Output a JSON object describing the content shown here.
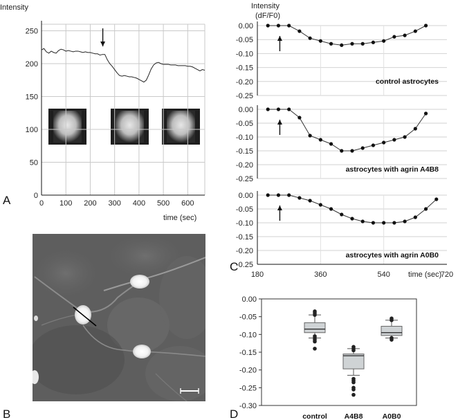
{
  "panel_letters": [
    "A",
    "B",
    "C",
    "D"
  ],
  "chart_data": [
    {
      "id": "A",
      "type": "line",
      "title": "",
      "ylabel": "Intensity",
      "xlabel": "time (sec)",
      "xlim": [
        0,
        670
      ],
      "ylim": [
        0,
        260
      ],
      "xticks": [
        0,
        100,
        200,
        300,
        400,
        500,
        600
      ],
      "yticks": [
        0,
        50,
        100,
        150,
        200,
        250
      ],
      "grid": true,
      "arrow_at_x": 260,
      "series": [
        {
          "x": [
            0,
            10,
            20,
            30,
            40,
            50,
            60,
            70,
            80,
            90,
            100,
            110,
            120,
            130,
            140,
            150,
            160,
            170,
            180,
            190,
            200,
            210,
            220,
            230,
            240,
            250,
            260,
            270,
            280,
            290,
            300,
            310,
            320,
            330,
            340,
            350,
            360,
            370,
            380,
            390,
            400,
            410,
            420,
            430,
            440,
            450,
            460,
            470,
            480,
            490,
            500,
            510,
            520,
            530,
            540,
            550,
            560,
            570,
            580,
            590,
            600,
            610,
            620,
            630,
            640,
            650,
            660,
            670
          ],
          "values": [
            221,
            223,
            218,
            216,
            219,
            217,
            216,
            220,
            222,
            221,
            219,
            220,
            219,
            218,
            219,
            219,
            218,
            217,
            218,
            217,
            217,
            216,
            215,
            215,
            213,
            214,
            214,
            206,
            200,
            196,
            191,
            186,
            182,
            181,
            182,
            181,
            180,
            180,
            179,
            178,
            176,
            174,
            172,
            175,
            183,
            192,
            198,
            201,
            202,
            200,
            199,
            199,
            199,
            198,
            198,
            198,
            197,
            197,
            197,
            197,
            196,
            196,
            195,
            193,
            191,
            189,
            191,
            190
          ]
        }
      ],
      "insets": 3
    },
    {
      "id": "C",
      "type": "line",
      "ylabel": "Intensity\n(dF/F0)",
      "xlabel": "time (sec)",
      "xlim": [
        180,
        720
      ],
      "ylim": [
        -0.25,
        0.0
      ],
      "xticks": [
        180,
        360,
        540,
        720
      ],
      "yticks": [
        0.0,
        -0.05,
        -0.1,
        -0.15,
        -0.2,
        -0.25
      ],
      "ytick_labels": [
        "0.00",
        "-0.05",
        "-0.10",
        "-0.15",
        "-0.20",
        "-0.25"
      ],
      "grid": true,
      "series": [
        {
          "name": "control astrocytes",
          "arrow_at_x": 240,
          "x": [
            210,
            240,
            270,
            300,
            330,
            360,
            390,
            420,
            450,
            480,
            510,
            540,
            570,
            600,
            630,
            660
          ],
          "values": [
            0.0,
            0.0,
            0.0,
            -0.02,
            -0.045,
            -0.055,
            -0.065,
            -0.07,
            -0.065,
            -0.065,
            -0.06,
            -0.055,
            -0.04,
            -0.035,
            -0.02,
            0.0
          ]
        },
        {
          "name": "astrocytes with agrin A4B8",
          "arrow_at_x": 240,
          "x": [
            210,
            240,
            270,
            300,
            330,
            360,
            390,
            420,
            450,
            480,
            510,
            540,
            570,
            600,
            630,
            660
          ],
          "values": [
            0.0,
            0.0,
            0.0,
            -0.03,
            -0.095,
            -0.11,
            -0.125,
            -0.15,
            -0.15,
            -0.14,
            -0.13,
            -0.12,
            -0.11,
            -0.1,
            -0.07,
            -0.015
          ]
        },
        {
          "name": "astrocytes with agrin A0B0",
          "arrow_at_x": 240,
          "x": [
            210,
            240,
            270,
            300,
            330,
            360,
            390,
            420,
            450,
            480,
            510,
            540,
            570,
            600,
            630,
            660,
            690
          ],
          "values": [
            0.0,
            0.0,
            0.0,
            -0.01,
            -0.02,
            -0.035,
            -0.05,
            -0.07,
            -0.085,
            -0.095,
            -0.1,
            -0.1,
            -0.1,
            -0.095,
            -0.08,
            -0.05,
            -0.015
          ]
        }
      ]
    },
    {
      "id": "D",
      "type": "box",
      "categories": [
        "control",
        "A4B8",
        "A0B0"
      ],
      "ylim": [
        -0.3,
        0.0
      ],
      "yticks": [
        0.0,
        -0.05,
        -0.1,
        -0.15,
        -0.2,
        -0.25,
        -0.3
      ],
      "ytick_labels": [
        "0.00",
        "-0.05",
        "-0.10",
        "-0.15",
        "-0.20",
        "-0.25",
        "-0.30"
      ],
      "boxes": [
        {
          "q1": -0.095,
          "median": -0.085,
          "q3": -0.067,
          "whisker_low": -0.11,
          "whisker_high": -0.045,
          "outliers": [
            -0.035,
            -0.04,
            -0.045,
            -0.105,
            -0.11,
            -0.115,
            -0.12,
            -0.14
          ]
        },
        {
          "q1": -0.197,
          "median": -0.16,
          "q3": -0.155,
          "whisker_low": -0.215,
          "whisker_high": -0.14,
          "outliers": [
            -0.135,
            -0.14,
            -0.145,
            -0.225,
            -0.23,
            -0.235,
            -0.25,
            -0.255,
            -0.27
          ]
        },
        {
          "q1": -0.103,
          "median": -0.095,
          "q3": -0.077,
          "whisker_low": -0.11,
          "whisker_high": -0.06,
          "outliers": [
            -0.055,
            -0.06,
            -0.11,
            -0.115
          ]
        }
      ]
    }
  ]
}
